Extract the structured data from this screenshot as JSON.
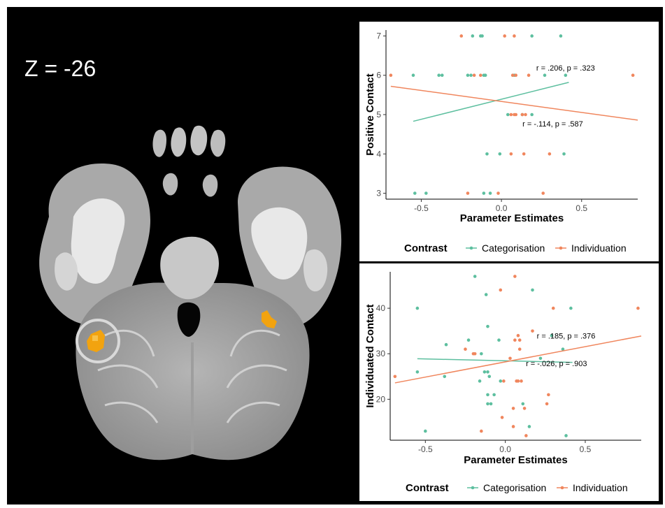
{
  "slice_label": "Z = -26",
  "colors": {
    "categorisation": "#5dbf9f",
    "individuation": "#f0865d",
    "activation": "#f2a30f",
    "highlight_ring": "#d9d9d9"
  },
  "chart_data": [
    {
      "type": "scatter",
      "xlabel": "Parameter Estimates",
      "ylabel": "Positive Contact",
      "xlim": [
        -0.72,
        0.85
      ],
      "ylim": [
        2.85,
        7.15
      ],
      "xticks": [
        -0.5,
        0.0,
        0.5
      ],
      "xtick_labels": [
        "-0.5",
        "0.0",
        "0.5"
      ],
      "yticks": [
        3,
        4,
        5,
        6,
        7
      ],
      "ytick_labels": [
        "3",
        "4",
        "5",
        "6",
        "7"
      ],
      "grid": false,
      "legend_placement": "bottom",
      "legend_title": "Contrast",
      "annotations": [
        {
          "text": "r = .206, p = .323",
          "x": 0.4,
          "y": 6.12
        },
        {
          "text": "r = -.114, p = .587",
          "x": 0.32,
          "y": 4.7
        }
      ],
      "series": [
        {
          "name": "Categorisation",
          "color": "#5dbf9f",
          "points": [
            [
              -0.12,
              7
            ],
            [
              -0.18,
              7
            ],
            [
              -0.13,
              7
            ],
            [
              0.19,
              7
            ],
            [
              0.37,
              7
            ],
            [
              -0.55,
              6
            ],
            [
              -0.39,
              6
            ],
            [
              -0.37,
              6
            ],
            [
              -0.21,
              6
            ],
            [
              -0.19,
              6
            ],
            [
              -0.11,
              6
            ],
            [
              -0.1,
              6
            ],
            [
              0.08,
              6
            ],
            [
              0.27,
              6
            ],
            [
              0.4,
              6
            ],
            [
              0.04,
              5
            ],
            [
              0.13,
              5
            ],
            [
              0.19,
              5
            ],
            [
              -0.09,
              4
            ],
            [
              -0.01,
              4
            ],
            [
              0.39,
              4
            ],
            [
              -0.54,
              3
            ],
            [
              -0.47,
              3
            ],
            [
              -0.11,
              3
            ],
            [
              -0.07,
              3
            ]
          ],
          "fit": [
            [
              -0.55,
              4.83
            ],
            [
              0.42,
              5.82
            ]
          ]
        },
        {
          "name": "Individuation",
          "color": "#f0865d",
          "points": [
            [
              -0.25,
              7
            ],
            [
              0.02,
              7
            ],
            [
              0.08,
              7
            ],
            [
              -0.69,
              6
            ],
            [
              -0.17,
              6
            ],
            [
              -0.13,
              6
            ],
            [
              0.07,
              6
            ],
            [
              0.09,
              6
            ],
            [
              0.17,
              6
            ],
            [
              0.82,
              6
            ],
            [
              0.06,
              5
            ],
            [
              0.08,
              5
            ],
            [
              0.09,
              5
            ],
            [
              0.13,
              5
            ],
            [
              0.15,
              5
            ],
            [
              0.06,
              4
            ],
            [
              0.14,
              4
            ],
            [
              0.3,
              4
            ],
            [
              -0.21,
              3
            ],
            [
              -0.02,
              3
            ],
            [
              0.26,
              3
            ]
          ],
          "fit": [
            [
              -0.69,
              5.72
            ],
            [
              0.85,
              4.86
            ]
          ]
        }
      ]
    },
    {
      "type": "scatter",
      "xlabel": "Parameter Estimates",
      "ylabel": "Individuated Contact",
      "xlim": [
        -0.72,
        0.85
      ],
      "ylim": [
        11,
        48
      ],
      "xticks": [
        -0.5,
        0.0,
        0.5
      ],
      "xtick_labels": [
        "-0.5",
        "0.0",
        "0.5"
      ],
      "yticks": [
        20,
        30,
        40
      ],
      "ytick_labels": [
        "20",
        "30",
        "40"
      ],
      "grid": false,
      "legend_placement": "bottom",
      "legend_title": "Contrast",
      "annotations": [
        {
          "text": "r = .185, p = .376",
          "x": 0.38,
          "y": 33.3
        },
        {
          "text": "r = -.026, p = .903",
          "x": 0.32,
          "y": 27.3
        }
      ],
      "series": [
        {
          "name": "Categorisation",
          "color": "#5dbf9f",
          "points": [
            [
              -0.19,
              47
            ],
            [
              -0.12,
              43
            ],
            [
              0.17,
              44
            ],
            [
              -0.55,
              40
            ],
            [
              0.41,
              40
            ],
            [
              -0.11,
              36
            ],
            [
              0.29,
              34
            ],
            [
              -0.23,
              33
            ],
            [
              -0.04,
              33
            ],
            [
              -0.37,
              32
            ],
            [
              0.36,
              31
            ],
            [
              -0.15,
              30
            ],
            [
              0.22,
              29
            ],
            [
              -0.55,
              26
            ],
            [
              -0.13,
              26
            ],
            [
              -0.11,
              26
            ],
            [
              -0.1,
              25
            ],
            [
              -0.38,
              25
            ],
            [
              -0.16,
              24
            ],
            [
              -0.03,
              24
            ],
            [
              -0.11,
              21
            ],
            [
              -0.07,
              21
            ],
            [
              -0.11,
              19
            ],
            [
              -0.09,
              19
            ],
            [
              0.11,
              19
            ],
            [
              0.15,
              14
            ],
            [
              -0.5,
              13
            ],
            [
              0.38,
              12
            ]
          ],
          "fit": [
            [
              -0.55,
              28.9
            ],
            [
              0.42,
              28.1
            ]
          ]
        },
        {
          "name": "Individuation",
          "color": "#f0865d",
          "points": [
            [
              0.06,
              47
            ],
            [
              -0.03,
              44
            ],
            [
              0.83,
              40
            ],
            [
              0.3,
              40
            ],
            [
              0.17,
              35
            ],
            [
              0.08,
              34
            ],
            [
              0.06,
              33
            ],
            [
              0.09,
              33
            ],
            [
              0.09,
              31
            ],
            [
              -0.25,
              31
            ],
            [
              -0.19,
              30
            ],
            [
              -0.2,
              30
            ],
            [
              0.03,
              29
            ],
            [
              -0.69,
              25
            ],
            [
              -0.01,
              24
            ],
            [
              0.07,
              24
            ],
            [
              0.08,
              24
            ],
            [
              0.1,
              24
            ],
            [
              0.27,
              21
            ],
            [
              0.26,
              19
            ],
            [
              0.05,
              18
            ],
            [
              0.12,
              18
            ],
            [
              -0.02,
              16
            ],
            [
              0.05,
              14
            ],
            [
              -0.15,
              13
            ],
            [
              0.13,
              12
            ]
          ],
          "fit": [
            [
              -0.69,
              23.6
            ],
            [
              0.85,
              33.9
            ]
          ]
        }
      ]
    }
  ]
}
